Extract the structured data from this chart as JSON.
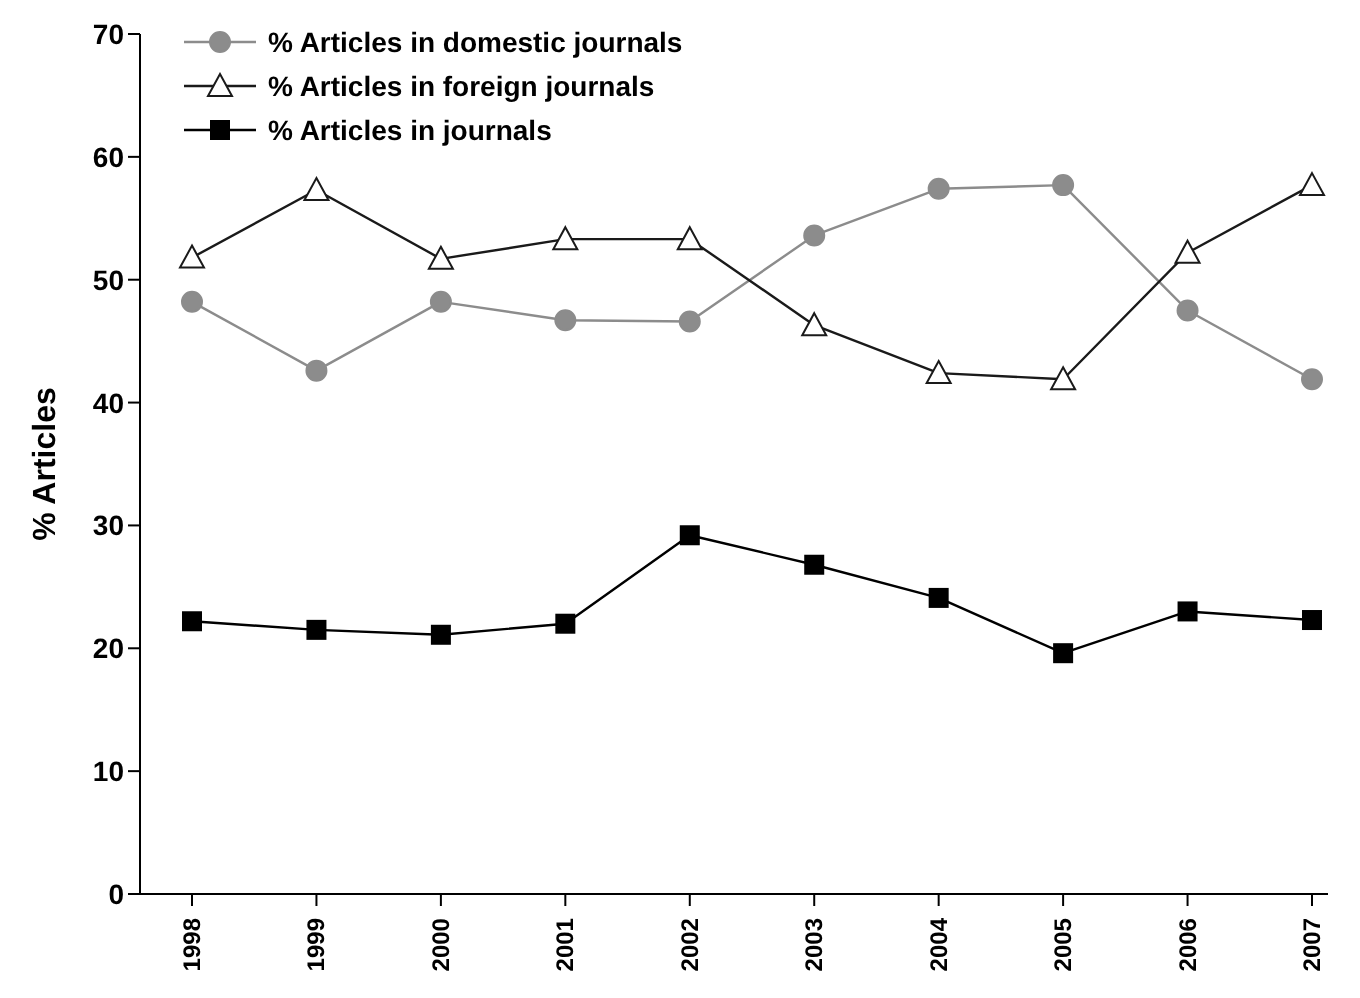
{
  "chart_data": {
    "type": "line",
    "ylabel": "% Articles",
    "categories": [
      "1998",
      "1999",
      "2000",
      "2001",
      "2002",
      "2003",
      "2004",
      "2005",
      "2006",
      "2007"
    ],
    "series": [
      {
        "name": "% Articles in domestic journals",
        "color": "#8c8c8c",
        "marker": "circle",
        "values": [
          48.2,
          42.6,
          48.2,
          46.7,
          46.6,
          53.6,
          57.4,
          57.7,
          47.5,
          41.9
        ]
      },
      {
        "name": "% Articles in foreign journals",
        "color": "#1a1a1a",
        "marker": "triangle",
        "values": [
          51.8,
          57.3,
          51.7,
          53.3,
          53.3,
          46.3,
          42.4,
          41.9,
          52.2,
          57.7
        ]
      },
      {
        "name": "% Articles in journals",
        "color": "#000000",
        "marker": "square",
        "values": [
          22.2,
          21.5,
          21.1,
          22.0,
          29.2,
          26.8,
          24.1,
          19.6,
          23.0,
          22.3
        ]
      }
    ],
    "ylim": [
      0,
      70
    ],
    "yticks": [
      0,
      10,
      20,
      30,
      40,
      50,
      60,
      70
    ],
    "grid": false,
    "legend": "top left"
  }
}
